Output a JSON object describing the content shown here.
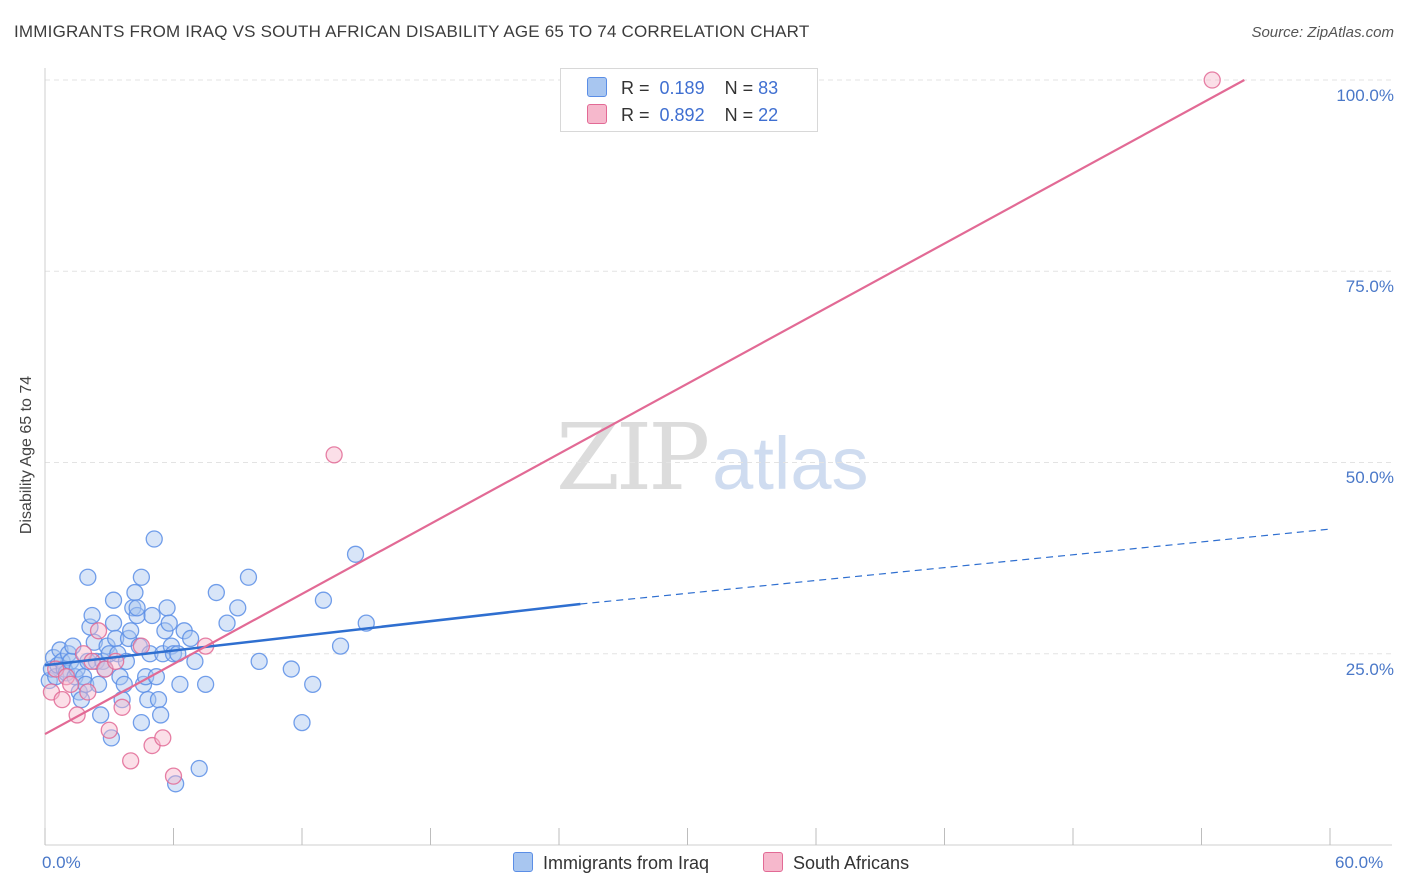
{
  "title": "IMMIGRANTS FROM IRAQ VS SOUTH AFRICAN DISABILITY AGE 65 TO 74 CORRELATION CHART",
  "source": "Source: ZipAtlas.com",
  "watermark": {
    "zip": "ZIP",
    "atlas": "atlas"
  },
  "legend": {
    "rows": [
      {
        "r_label": "R =",
        "r_value": "0.189",
        "n_label": "N =",
        "n_value": "83",
        "color": "#a8c6f0"
      },
      {
        "r_label": "R =",
        "r_value": "0.892",
        "n_label": "N =",
        "n_value": "22",
        "color": "#f6b8cc"
      }
    ]
  },
  "bottom_legend": {
    "items": [
      {
        "label": "Immigrants from Iraq",
        "color": "#a8c6f0"
      },
      {
        "label": "South Africans",
        "color": "#f6b8cc"
      }
    ]
  },
  "chart_data": {
    "type": "scatter",
    "title": "IMMIGRANTS FROM IRAQ VS SOUTH AFRICAN DISABILITY AGE 65 TO 74 CORRELATION CHART",
    "xlabel": "",
    "ylabel": "Disability Age 65 to 74",
    "xlim": [
      0,
      60
    ],
    "ylim": [
      0,
      100
    ],
    "x_tick_labels": {
      "min": "0.0%",
      "max": "60.0%"
    },
    "y_ticks": [
      {
        "value": 25,
        "label": "25.0%"
      },
      {
        "value": 50,
        "label": "50.0%"
      },
      {
        "value": 75,
        "label": "75.0%"
      },
      {
        "value": 100,
        "label": "100.0%"
      }
    ],
    "series": [
      {
        "name": "Immigrants from Iraq",
        "color": "#5b8ee6",
        "fill": "#a8c6f0",
        "points": [
          [
            0.2,
            21.5
          ],
          [
            0.3,
            23
          ],
          [
            0.4,
            24.5
          ],
          [
            0.5,
            22
          ],
          [
            0.6,
            23.5
          ],
          [
            0.7,
            25.5
          ],
          [
            0.8,
            24
          ],
          [
            0.9,
            23
          ],
          [
            1.0,
            22.5
          ],
          [
            1.1,
            25
          ],
          [
            1.2,
            24
          ],
          [
            1.3,
            26
          ],
          [
            1.4,
            22
          ],
          [
            1.5,
            23
          ],
          [
            1.6,
            20
          ],
          [
            1.7,
            19
          ],
          [
            1.8,
            22
          ],
          [
            1.9,
            21
          ],
          [
            2.0,
            24
          ],
          [
            2.1,
            28.5
          ],
          [
            2.2,
            30
          ],
          [
            2.3,
            26.5
          ],
          [
            2.4,
            24
          ],
          [
            2.5,
            21
          ],
          [
            2.6,
            17
          ],
          [
            2.7,
            24
          ],
          [
            2.8,
            23
          ],
          [
            2.9,
            26
          ],
          [
            3.0,
            25
          ],
          [
            3.1,
            14
          ],
          [
            3.2,
            29
          ],
          [
            3.3,
            27
          ],
          [
            3.4,
            25
          ],
          [
            3.5,
            22
          ],
          [
            3.6,
            19
          ],
          [
            3.7,
            21
          ],
          [
            3.8,
            24
          ],
          [
            3.9,
            27
          ],
          [
            4.0,
            28
          ],
          [
            4.1,
            31
          ],
          [
            4.2,
            33
          ],
          [
            4.3,
            30
          ],
          [
            4.4,
            26
          ],
          [
            4.5,
            16
          ],
          [
            4.6,
            21
          ],
          [
            4.7,
            22
          ],
          [
            4.8,
            19
          ],
          [
            4.9,
            25
          ],
          [
            5.0,
            30
          ],
          [
            5.1,
            40
          ],
          [
            5.2,
            22
          ],
          [
            5.3,
            19
          ],
          [
            5.4,
            17
          ],
          [
            5.5,
            25
          ],
          [
            5.6,
            28
          ],
          [
            5.7,
            31
          ],
          [
            5.8,
            29
          ],
          [
            5.9,
            26
          ],
          [
            6.0,
            25
          ],
          [
            6.1,
            8
          ],
          [
            6.2,
            25
          ],
          [
            6.3,
            21
          ],
          [
            6.5,
            28
          ],
          [
            6.8,
            27
          ],
          [
            7.0,
            24
          ],
          [
            7.2,
            10
          ],
          [
            7.5,
            21
          ],
          [
            8.0,
            33
          ],
          [
            8.5,
            29
          ],
          [
            9.0,
            31
          ],
          [
            9.5,
            35
          ],
          [
            2.0,
            35
          ],
          [
            3.2,
            32
          ],
          [
            4.5,
            35
          ],
          [
            4.3,
            31
          ],
          [
            10.0,
            24
          ],
          [
            11.5,
            23
          ],
          [
            12.0,
            16
          ],
          [
            12.5,
            21
          ],
          [
            13.0,
            32
          ],
          [
            13.8,
            26
          ],
          [
            14.5,
            38
          ],
          [
            15.0,
            29
          ]
        ],
        "trend": {
          "x1": 0,
          "y1": 23.5,
          "x2": 25,
          "y2": 31.5,
          "extend_to_x": 60,
          "extend_to_y": 41.3
        }
      },
      {
        "name": "South Africans",
        "color": "#e26a95",
        "fill": "#f6b8cc",
        "points": [
          [
            0.3,
            20
          ],
          [
            0.5,
            23
          ],
          [
            0.8,
            19
          ],
          [
            1.0,
            22
          ],
          [
            1.2,
            21
          ],
          [
            1.5,
            17
          ],
          [
            1.8,
            25
          ],
          [
            2.0,
            20
          ],
          [
            2.2,
            24
          ],
          [
            2.5,
            28
          ],
          [
            2.8,
            23
          ],
          [
            3.0,
            15
          ],
          [
            3.3,
            24
          ],
          [
            3.6,
            18
          ],
          [
            4.0,
            11
          ],
          [
            4.5,
            26
          ],
          [
            5.0,
            13
          ],
          [
            5.5,
            14
          ],
          [
            6.0,
            9
          ],
          [
            7.5,
            26
          ],
          [
            13.5,
            51
          ],
          [
            54.5,
            100
          ]
        ],
        "trend": {
          "x1": 0,
          "y1": 14.5,
          "x2": 56,
          "y2": 100
        }
      }
    ]
  }
}
